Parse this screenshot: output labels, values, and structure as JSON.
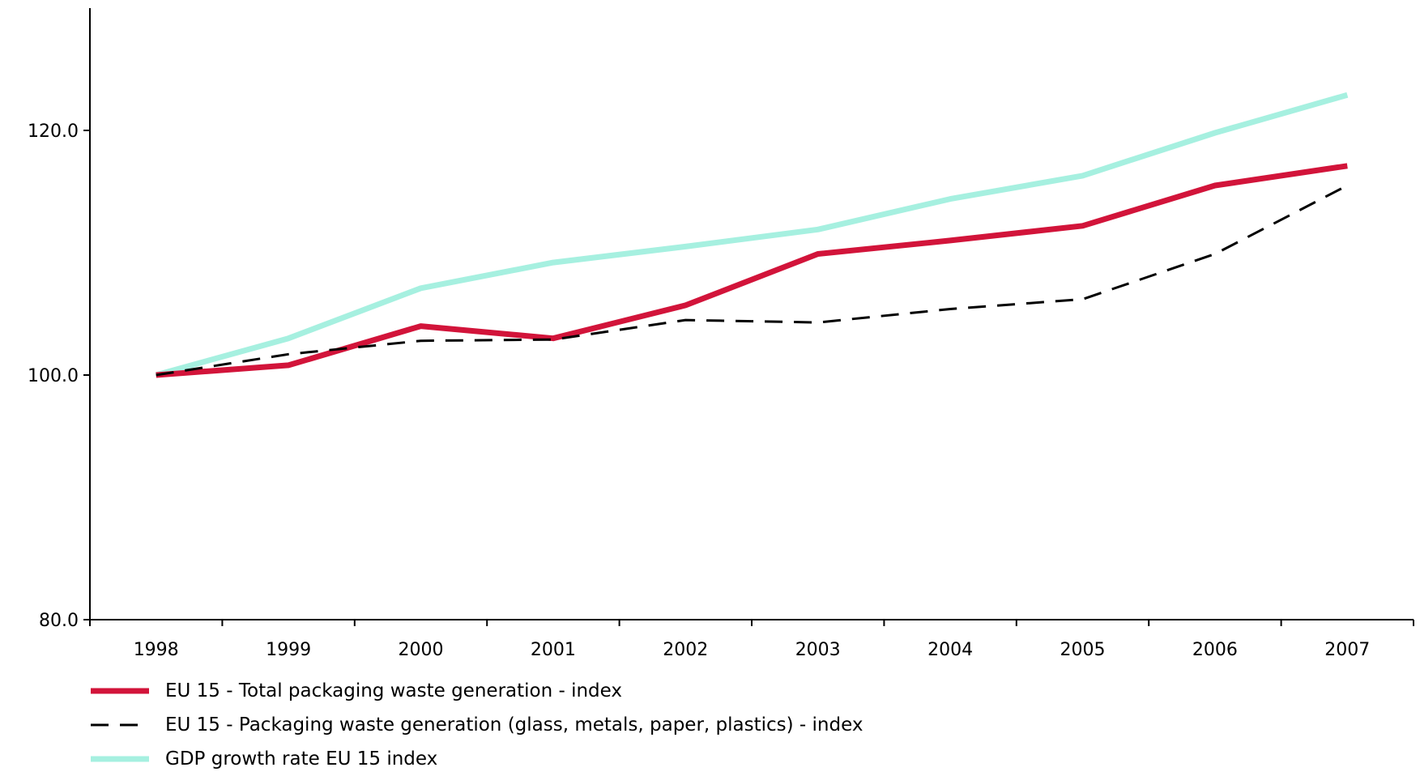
{
  "chart_data": {
    "type": "line",
    "title": "",
    "xlabel": "",
    "ylabel": "",
    "categories": [
      "1998",
      "1999",
      "2000",
      "2001",
      "2002",
      "2003",
      "2004",
      "2005",
      "2006",
      "2007"
    ],
    "ylim": [
      80,
      130
    ],
    "yticks": [
      80,
      100,
      120
    ],
    "ytick_labels": [
      "80.0",
      "100.0",
      "120.0"
    ],
    "grid": false,
    "legend_position": "bottom-left",
    "series": [
      {
        "name": "EU 15 - Total packaging waste generation - index",
        "color": "#d2143a",
        "style": "solid-thick",
        "values": [
          100.0,
          100.8,
          104.0,
          103.0,
          105.7,
          109.9,
          111.0,
          112.2,
          115.5,
          117.1
        ]
      },
      {
        "name": "EU 15 - Packaging waste generation (glass, metals, paper, plastics) - index",
        "color": "#000000",
        "style": "dashed",
        "values": [
          100.0,
          101.7,
          102.8,
          102.9,
          104.5,
          104.3,
          105.4,
          106.2,
          109.9,
          115.5
        ]
      },
      {
        "name": "GDP growth rate EU 15 index",
        "color": "#a6f0e0",
        "style": "solid-thick",
        "values": [
          100.0,
          103.0,
          107.1,
          109.2,
          110.5,
          111.9,
          114.4,
          116.3,
          119.8,
          122.9
        ]
      }
    ]
  }
}
